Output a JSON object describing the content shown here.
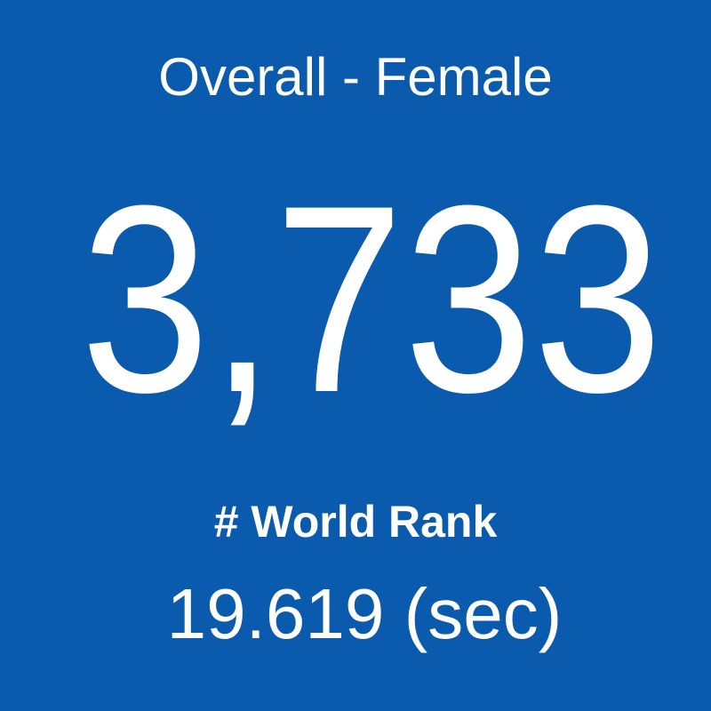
{
  "tile": {
    "title": "Overall - Female",
    "value": "3,733",
    "label": "# World Rank",
    "time": "19.619 (sec)"
  }
}
